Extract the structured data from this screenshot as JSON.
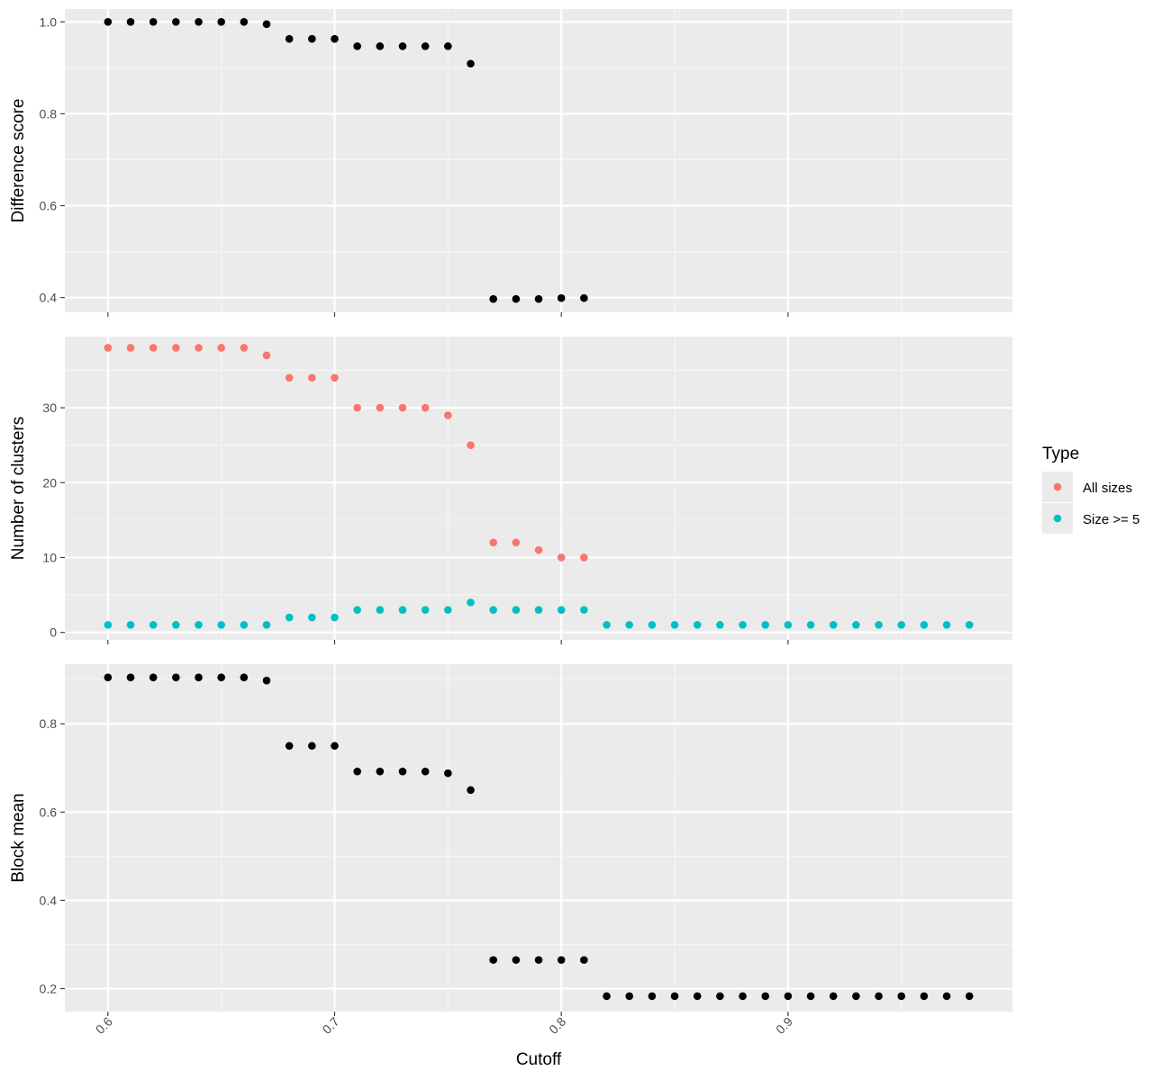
{
  "colors": {
    "panel_bg": "#EBEBEB",
    "grid_major": "#FFFFFF",
    "grid_minor": "#F5F5F5",
    "point_default": "#000000",
    "all_sizes": "#F8766D",
    "size_ge_5": "#00BFC4",
    "tick_text": "#4D4D4D",
    "tick_mark": "#333333"
  },
  "chart_data": {
    "type": "scatter",
    "shared_x": {
      "label": "Cutoff",
      "ticks": [
        0.6,
        0.7,
        0.8,
        0.9
      ],
      "tick_labels": [
        "0.6",
        "0.7",
        "0.8",
        "0.9"
      ],
      "range": [
        0.581,
        0.999
      ],
      "tick_label_rotation": -45
    },
    "legend": {
      "title": "Type",
      "placement": "right",
      "entries": [
        {
          "label": "All sizes",
          "color": "#F8766D"
        },
        {
          "label": "Size >= 5",
          "color": "#00BFC4"
        }
      ]
    },
    "panels": [
      {
        "ylabel": "Difference score",
        "ylim": [
          0.368,
          1.028
        ],
        "yticks": [
          0.4,
          0.6,
          0.8,
          1.0
        ],
        "ytick_labels": [
          "0.4",
          "0.6",
          "0.8",
          "1.0"
        ],
        "series": [
          {
            "color": "#000000",
            "x": [
              0.6,
              0.61,
              0.62,
              0.63,
              0.64,
              0.65,
              0.66,
              0.67,
              0.68,
              0.69,
              0.7,
              0.71,
              0.72,
              0.73,
              0.74,
              0.75,
              0.76,
              0.77,
              0.78,
              0.79,
              0.8,
              0.81
            ],
            "y": [
              1.0,
              1.0,
              1.0,
              1.0,
              1.0,
              1.0,
              1.0,
              0.995,
              0.963,
              0.963,
              0.963,
              0.947,
              0.947,
              0.947,
              0.947,
              0.947,
              0.909,
              0.397,
              0.397,
              0.397,
              0.399,
              0.399
            ]
          }
        ]
      },
      {
        "ylabel": "Number of clusters",
        "ylim": [
          -1,
          39.5
        ],
        "yticks": [
          0,
          10,
          20,
          30
        ],
        "ytick_labels": [
          "0",
          "10",
          "20",
          "30"
        ],
        "series": [
          {
            "name": "All sizes",
            "color": "#F8766D",
            "x": [
              0.6,
              0.61,
              0.62,
              0.63,
              0.64,
              0.65,
              0.66,
              0.67,
              0.68,
              0.69,
              0.7,
              0.71,
              0.72,
              0.73,
              0.74,
              0.75,
              0.76,
              0.77,
              0.78,
              0.79,
              0.8,
              0.81
            ],
            "y": [
              38,
              38,
              38,
              38,
              38,
              38,
              38,
              37,
              34,
              34,
              34,
              30,
              30,
              30,
              30,
              29,
              25,
              12,
              12,
              11,
              10,
              10
            ]
          },
          {
            "name": "Size >= 5",
            "color": "#00BFC4",
            "x": [
              0.6,
              0.61,
              0.62,
              0.63,
              0.64,
              0.65,
              0.66,
              0.67,
              0.68,
              0.69,
              0.7,
              0.71,
              0.72,
              0.73,
              0.74,
              0.75,
              0.76,
              0.77,
              0.78,
              0.79,
              0.8,
              0.81,
              0.82,
              0.83,
              0.84,
              0.85,
              0.86,
              0.87,
              0.88,
              0.89,
              0.9,
              0.91,
              0.92,
              0.93,
              0.94,
              0.95,
              0.96,
              0.97,
              0.98
            ],
            "y": [
              1,
              1,
              1,
              1,
              1,
              1,
              1,
              1,
              2,
              2,
              2,
              3,
              3,
              3,
              3,
              3,
              4,
              3,
              3,
              3,
              3,
              3,
              1,
              1,
              1,
              1,
              1,
              1,
              1,
              1,
              1,
              1,
              1,
              1,
              1,
              1,
              1,
              1,
              1
            ]
          }
        ]
      },
      {
        "ylabel": "Block mean",
        "ylim": [
          0.148,
          0.935
        ],
        "yticks": [
          0.2,
          0.4,
          0.6,
          0.8
        ],
        "ytick_labels": [
          "0.2",
          "0.4",
          "0.6",
          "0.8"
        ],
        "series": [
          {
            "color": "#000000",
            "x": [
              0.6,
              0.61,
              0.62,
              0.63,
              0.64,
              0.65,
              0.66,
              0.67,
              0.68,
              0.69,
              0.7,
              0.71,
              0.72,
              0.73,
              0.74,
              0.75,
              0.76,
              0.77,
              0.78,
              0.79,
              0.8,
              0.81,
              0.82,
              0.83,
              0.84,
              0.85,
              0.86,
              0.87,
              0.88,
              0.89,
              0.9,
              0.91,
              0.92,
              0.93,
              0.94,
              0.95,
              0.96,
              0.97,
              0.98
            ],
            "y": [
              0.905,
              0.905,
              0.905,
              0.905,
              0.905,
              0.905,
              0.905,
              0.898,
              0.75,
              0.75,
              0.75,
              0.692,
              0.692,
              0.692,
              0.692,
              0.688,
              0.65,
              0.265,
              0.265,
              0.265,
              0.265,
              0.265,
              0.183,
              0.183,
              0.183,
              0.183,
              0.183,
              0.183,
              0.183,
              0.183,
              0.183,
              0.183,
              0.183,
              0.183,
              0.183,
              0.183,
              0.183,
              0.183,
              0.183
            ]
          }
        ]
      }
    ]
  }
}
